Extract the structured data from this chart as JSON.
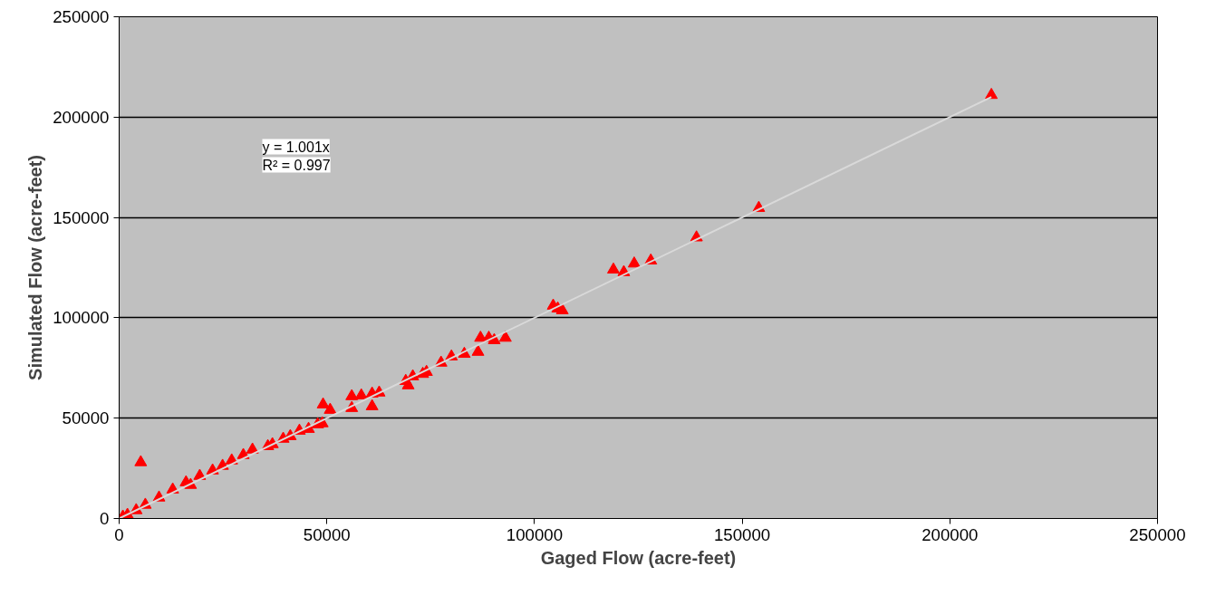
{
  "chart_data": {
    "type": "scatter",
    "xlabel": "Gaged Flow (acre-feet)",
    "ylabel": "Simulated Flow (acre-feet)",
    "annotations": [
      "y = 1.001x",
      "R² = 0.997"
    ],
    "series": [
      {
        "color": "#ff0000",
        "marker": "triangle",
        "x": [
          5200,
          210000,
          154000,
          139000,
          128000,
          124000,
          121500,
          119000,
          105600,
          106700,
          104500,
          93000,
          90300,
          89000,
          87000,
          86400,
          83100,
          80000,
          77500,
          74000,
          73100,
          70700,
          69000,
          69600,
          62600,
          60900,
          60900,
          58300,
          56000,
          56000,
          50800,
          49100,
          48900,
          47800,
          45600,
          43400,
          41200,
          39500,
          36900,
          35800,
          32100,
          29900,
          27100,
          24900,
          22500,
          19400,
          17200,
          16100,
          12900,
          9600,
          6300,
          4100,
          2000,
          900
        ],
        "values": [
          28000,
          211000,
          154700,
          140000,
          128500,
          127000,
          122700,
          124000,
          104600,
          103700,
          106000,
          90000,
          88800,
          90000,
          90000,
          83000,
          82000,
          80700,
          77600,
          73000,
          72000,
          70800,
          68500,
          66300,
          62700,
          62200,
          55900,
          61300,
          60900,
          55000,
          54100,
          56800,
          47400,
          46900,
          44600,
          43700,
          41000,
          39700,
          37000,
          36000,
          34300,
          31600,
          28900,
          26200,
          23900,
          21200,
          16700,
          18000,
          14400,
          10400,
          6800,
          4100,
          1800,
          900
        ]
      },
      {
        "type": "line",
        "color": "#d9d9d9",
        "x": [
          0,
          210000
        ],
        "values": [
          0,
          210000
        ]
      }
    ],
    "xlim": [
      0,
      250000
    ],
    "ylim": [
      0,
      250000
    ],
    "xticks": [
      0,
      50000,
      100000,
      150000,
      200000,
      250000
    ],
    "yticks": [
      0,
      50000,
      100000,
      150000,
      200000,
      250000
    ],
    "grid": "y"
  }
}
